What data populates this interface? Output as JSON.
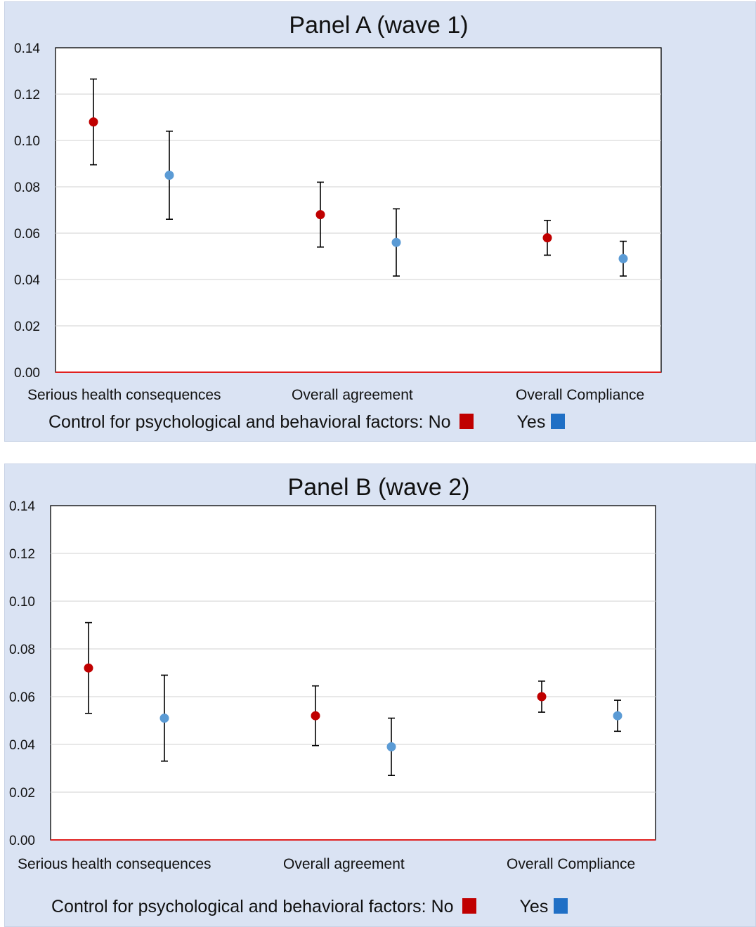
{
  "colors": {
    "no": "#c00000",
    "yes": "#5b9bd5",
    "baseline": "#e0201f",
    "swatch_yes": "#1f6fc5"
  },
  "chart_data": [
    {
      "type": "scatter",
      "title": "Panel A (wave 1)",
      "categories": [
        "Serious health consequences",
        "Overall agreement",
        "Overall Compliance"
      ],
      "ylim": [
        0,
        0.14
      ],
      "yticks": [
        "0.00",
        "0.02",
        "0.04",
        "0.06",
        "0.08",
        "0.10",
        "0.12",
        "0.14"
      ],
      "grid": true,
      "error_bars": true,
      "series": [
        {
          "name": "No",
          "values": [
            0.108,
            0.068,
            0.058
          ],
          "lower": [
            0.0895,
            0.054,
            0.0505
          ],
          "upper": [
            0.1265,
            0.082,
            0.0655
          ]
        },
        {
          "name": "Yes",
          "values": [
            0.085,
            0.056,
            0.049
          ],
          "lower": [
            0.066,
            0.0415,
            0.0415
          ],
          "upper": [
            0.104,
            0.0705,
            0.0565
          ]
        }
      ],
      "legend": {
        "prefix": "Control for psychological and behavioral factors: No",
        "yes_label": "Yes",
        "placement": "bottom"
      }
    },
    {
      "type": "scatter",
      "title": "Panel B (wave 2)",
      "categories": [
        "Serious health consequences",
        "Overall agreement",
        "Overall Compliance"
      ],
      "ylim": [
        0,
        0.14
      ],
      "yticks": [
        "0.00",
        "0.02",
        "0.04",
        "0.06",
        "0.08",
        "0.10",
        "0.12",
        "0.14"
      ],
      "grid": true,
      "error_bars": true,
      "series": [
        {
          "name": "No",
          "values": [
            0.072,
            0.052,
            0.06
          ],
          "lower": [
            0.053,
            0.0395,
            0.0535
          ],
          "upper": [
            0.091,
            0.0645,
            0.0665
          ]
        },
        {
          "name": "Yes",
          "values": [
            0.051,
            0.039,
            0.052
          ],
          "lower": [
            0.033,
            0.027,
            0.0455
          ],
          "upper": [
            0.069,
            0.051,
            0.0585
          ]
        }
      ],
      "legend": {
        "prefix": "Control for psychological and behavioral factors: No",
        "yes_label": "Yes",
        "placement": "bottom"
      }
    }
  ]
}
